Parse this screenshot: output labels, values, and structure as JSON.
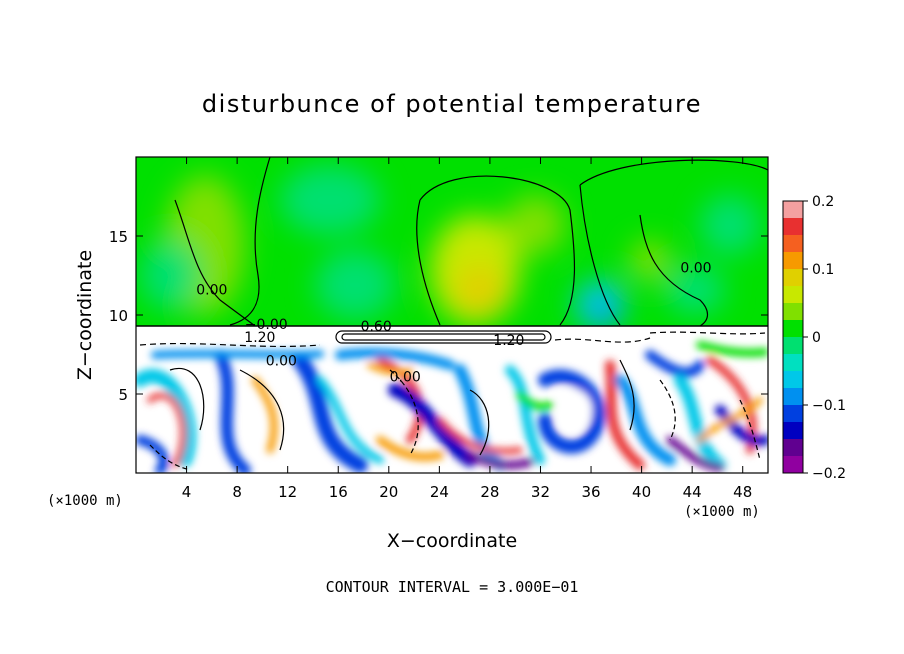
{
  "chart_data": {
    "type": "heatmap",
    "title": "disturbunce of potential temperature",
    "xlabel": "X−coordinate",
    "ylabel": "Z−coordinate",
    "x_unit_left": "(×1000 m)",
    "x_unit_right": "(×1000 m)",
    "xlim": [
      0,
      50
    ],
    "ylim": [
      0,
      20
    ],
    "x_ticks": [
      4,
      8,
      12,
      16,
      20,
      24,
      28,
      32,
      36,
      40,
      44,
      48
    ],
    "y_ticks": [
      5,
      10,
      15
    ],
    "colorbar": {
      "min": -0.2,
      "max": 0.2,
      "tick_labels": [
        "0.2",
        "0.1",
        "0",
        "−0.1",
        "−0.2"
      ],
      "tick_values": [
        0.2,
        0.1,
        0,
        -0.1,
        -0.2
      ],
      "colors": [
        "#f4a0a0",
        "#e83030",
        "#f56020",
        "#f79a00",
        "#e0d000",
        "#c8e800",
        "#80e000",
        "#00e000",
        "#00e070",
        "#00e0c0",
        "#00c8e8",
        "#0090f0",
        "#0040e0",
        "#0000c0",
        "#600090",
        "#9000a0"
      ]
    },
    "contour_labels": [
      {
        "text": "0.00",
        "x": 6.0,
        "z": 11.3
      },
      {
        "text": "−0.00",
        "x": 10.3,
        "z": 9.1
      },
      {
        "text": "0.60",
        "x": 19.0,
        "z": 9.0
      },
      {
        "text": "1.20",
        "x": 9.8,
        "z": 8.3
      },
      {
        "text": "1.20",
        "x": 29.5,
        "z": 8.1
      },
      {
        "text": "0.00",
        "x": 11.5,
        "z": 6.8
      },
      {
        "text": "0.00",
        "x": 21.3,
        "z": 5.8
      },
      {
        "text": "0.00",
        "x": 44.3,
        "z": 12.7
      }
    ],
    "inversion_height": 9.2,
    "footer": "CONTOUR INTERVAL = 3.000E−01"
  }
}
